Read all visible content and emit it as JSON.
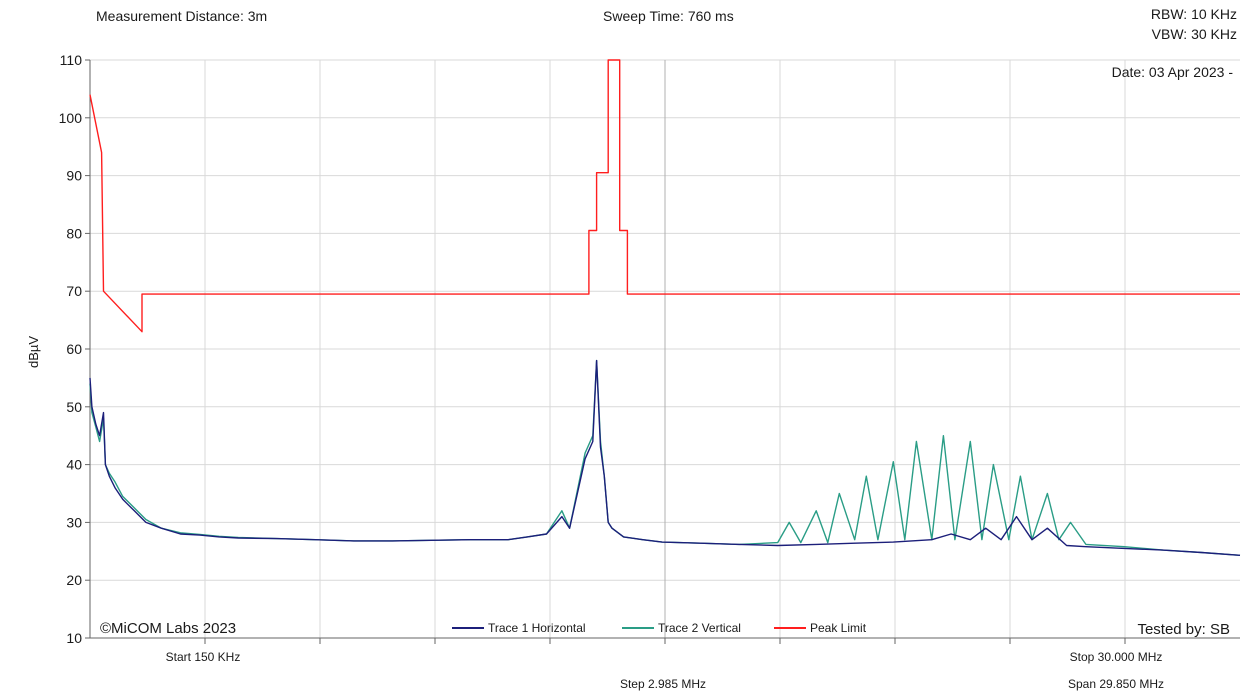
{
  "header": {
    "measurement_distance": "Measurement Distance: 3m",
    "sweep_time": "Sweep Time: 760 ms",
    "rbw": "RBW: 10 KHz",
    "vbw": "VBW: 30 KHz",
    "date": "Date: 03 Apr 2023 -"
  },
  "footer": {
    "copyright": "©MiCOM Labs 2023",
    "tested_by": "Tested by: SB",
    "start": "Start 150 KHz",
    "stop": "Stop 30.000 MHz",
    "step": "Step 2.985 MHz",
    "span": "Span 29.850 MHz"
  },
  "colors": {
    "trace1": "#1c1f7a",
    "trace2": "#2a9d86",
    "limit": "#ff1e1e",
    "grid": "#d9d9d9",
    "axis": "#666666"
  },
  "chart_data": {
    "type": "line",
    "xlim": [
      0.15,
      30.0
    ],
    "ylim": [
      10,
      110
    ],
    "ylabel": "dBµV",
    "yticks": [
      10,
      20,
      30,
      40,
      50,
      60,
      70,
      80,
      90,
      100,
      110
    ],
    "grid": true,
    "legend_placement": "bottom-center",
    "series": [
      {
        "name": "Trace 1 Horizontal",
        "x": [
          0.15,
          0.2,
          0.3,
          0.4,
          0.5,
          0.55,
          0.65,
          0.8,
          1.0,
          1.3,
          1.6,
          2.0,
          2.5,
          3.0,
          3.5,
          4.0,
          5.0,
          6.0,
          7.0,
          8.0,
          9.0,
          10.0,
          11.0,
          11.5,
          12.0,
          12.4,
          12.6,
          13.0,
          13.2,
          13.3,
          13.4,
          13.5,
          13.6,
          13.7,
          14.0,
          14.5,
          15.0,
          16.0,
          17.0,
          18.0,
          19.0,
          20.0,
          21.0,
          22.0,
          22.5,
          23.0,
          23.4,
          23.8,
          24.2,
          24.6,
          25.0,
          25.5,
          26.0,
          27.0,
          28.0,
          29.0,
          30.0
        ],
        "y": [
          55,
          50,
          47,
          45,
          49,
          40,
          38,
          36,
          34,
          32,
          30,
          29,
          28,
          27.8,
          27.5,
          27.3,
          27.2,
          27,
          26.8,
          26.8,
          26.9,
          27,
          27,
          27.5,
          28,
          31,
          29,
          41,
          44,
          58,
          43,
          38,
          30,
          29,
          27.5,
          27,
          26.6,
          26.4,
          26.2,
          26,
          26.2,
          26.4,
          26.6,
          27,
          28,
          27,
          29,
          27,
          31,
          27,
          29,
          26,
          25.8,
          25.5,
          25.2,
          24.8,
          24.3
        ]
      },
      {
        "name": "Trace 2 Vertical",
        "x": [
          0.15,
          0.2,
          0.3,
          0.4,
          0.5,
          0.55,
          0.65,
          0.8,
          1.0,
          1.3,
          1.6,
          2.0,
          2.5,
          3.0,
          3.5,
          4.0,
          5.0,
          6.0,
          7.0,
          8.0,
          9.0,
          10.0,
          11.0,
          11.5,
          12.0,
          12.4,
          12.6,
          13.0,
          13.2,
          13.3,
          13.4,
          13.5,
          13.6,
          13.7,
          14.0,
          14.5,
          15.0,
          16.0,
          17.0,
          18.0,
          18.3,
          18.6,
          19.0,
          19.3,
          19.6,
          20.0,
          20.3,
          20.6,
          21.0,
          21.3,
          21.6,
          22.0,
          22.3,
          22.6,
          23.0,
          23.3,
          23.6,
          24.0,
          24.3,
          24.6,
          25.0,
          25.3,
          25.6,
          26.0,
          27.0,
          28.0,
          29.0,
          30.0
        ],
        "y": [
          54,
          49,
          46.5,
          44,
          48,
          40,
          38.5,
          37,
          34.5,
          32.5,
          30.5,
          29,
          28.2,
          27.9,
          27.6,
          27.4,
          27.2,
          27,
          26.8,
          26.8,
          26.9,
          27,
          27,
          27.5,
          28,
          32,
          29,
          42,
          45,
          58,
          44,
          38,
          30,
          29,
          27.5,
          27,
          26.6,
          26.4,
          26.2,
          26.5,
          30,
          26.5,
          32,
          26.5,
          35,
          27,
          38,
          27,
          40.5,
          27,
          44,
          27,
          45,
          27,
          44,
          27,
          40,
          27,
          38,
          27,
          35,
          27,
          30,
          26.2,
          25.8,
          25.2,
          24.8,
          24.3
        ]
      },
      {
        "name": "Peak Limit",
        "x": [
          0.15,
          0.45,
          0.5,
          1.5,
          1.5,
          13.1,
          13.1,
          13.3,
          13.3,
          13.6,
          13.6,
          13.9,
          13.9,
          14.1,
          14.1,
          30.0
        ],
        "y": [
          104,
          94,
          70,
          63,
          69.5,
          69.5,
          80.5,
          80.5,
          90.5,
          90.5,
          110,
          110,
          80.5,
          80.5,
          69.5,
          69.5
        ]
      }
    ]
  }
}
